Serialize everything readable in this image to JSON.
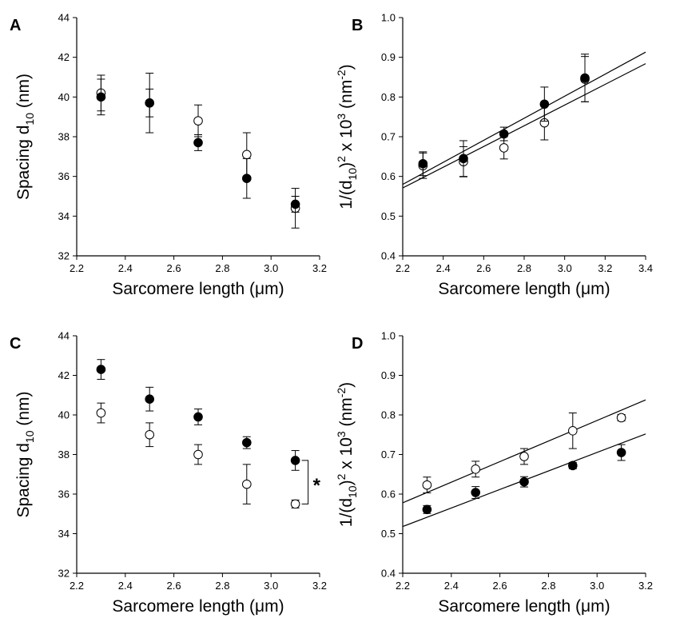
{
  "chart_data": [
    {
      "panel": "A",
      "type": "scatter",
      "xlabel": "Sarcomere length (μm)",
      "ylabel": "Spacing d10 (nm)",
      "xlim": [
        2.2,
        3.2
      ],
      "ylim": [
        32,
        44
      ],
      "xticks": [
        2.2,
        2.4,
        2.6,
        2.8,
        3.0,
        3.2
      ],
      "xtick_labels": [
        "2.2",
        "2.4",
        "2.6",
        "2.8",
        "3.0",
        "3.2"
      ],
      "yticks": [
        32,
        34,
        36,
        38,
        40,
        42,
        44
      ],
      "ytick_labels": [
        "32",
        "34",
        "36",
        "38",
        "40",
        "42",
        "44"
      ],
      "series": [
        {
          "marker": "open",
          "x": [
            2.3,
            2.5,
            2.7,
            2.9,
            3.1
          ],
          "y": [
            40.2,
            39.7,
            38.8,
            37.1,
            34.4
          ],
          "err": [
            0.9,
            1.5,
            0.8,
            1.1,
            1.0
          ]
        },
        {
          "marker": "filled",
          "x": [
            2.3,
            2.5,
            2.7,
            2.9,
            3.1
          ],
          "y": [
            40.0,
            39.7,
            37.7,
            35.9,
            34.6
          ],
          "err": [
            0.9,
            0.7,
            0.4,
            1.0,
            0.4
          ]
        }
      ],
      "fit_lines": []
    },
    {
      "panel": "B",
      "type": "scatter",
      "xlabel": "Sarcomere length (μm)",
      "ylabel": "1/(d10)² x 10³ (nm⁻²)",
      "xlim": [
        2.2,
        3.4
      ],
      "ylim": [
        0.4,
        1.0
      ],
      "xticks": [
        2.2,
        2.4,
        2.6,
        2.8,
        3.0,
        3.2,
        3.4
      ],
      "xtick_labels": [
        "2.2",
        "2.4",
        "2.6",
        "2.8",
        "3.0",
        "3.2",
        "3.4"
      ],
      "yticks": [
        0.4,
        0.5,
        0.6,
        0.7,
        0.8,
        0.9,
        1.0
      ],
      "ytick_labels": [
        "0.4",
        "0.5",
        "0.6",
        "0.7",
        "0.8",
        "0.9",
        "1.0"
      ],
      "series": [
        {
          "marker": "open",
          "x": [
            2.3,
            2.5,
            2.7,
            2.9,
            3.1
          ],
          "y": [
            0.627,
            0.637,
            0.672,
            0.735,
            0.845
          ],
          "err": [
            0.032,
            0.038,
            0.028,
            0.043,
            0.057
          ]
        },
        {
          "marker": "filled",
          "x": [
            2.3,
            2.5,
            2.7,
            2.9,
            3.1
          ],
          "y": [
            0.632,
            0.645,
            0.707,
            0.782,
            0.848
          ],
          "err": [
            0.03,
            0.045,
            0.017,
            0.043,
            0.06
          ]
        }
      ],
      "fit_lines": [
        {
          "x": [
            2.2,
            3.4
          ],
          "y": [
            0.58,
            0.913
          ]
        },
        {
          "x": [
            2.2,
            3.4
          ],
          "y": [
            0.571,
            0.884
          ]
        }
      ]
    },
    {
      "panel": "C",
      "type": "scatter",
      "xlabel": "Sarcomere length (μm)",
      "ylabel": "Spacing d10 (nm)",
      "xlim": [
        2.2,
        3.2
      ],
      "ylim": [
        32,
        44
      ],
      "xticks": [
        2.2,
        2.4,
        2.6,
        2.8,
        3.0,
        3.2
      ],
      "xtick_labels": [
        "2.2",
        "2.4",
        "2.6",
        "2.8",
        "3.0",
        "3.2"
      ],
      "yticks": [
        32,
        34,
        36,
        38,
        40,
        42,
        44
      ],
      "ytick_labels": [
        "32",
        "34",
        "36",
        "38",
        "40",
        "42",
        "44"
      ],
      "series": [
        {
          "marker": "open",
          "x": [
            2.3,
            2.5,
            2.7,
            2.9,
            3.1
          ],
          "y": [
            40.1,
            39.0,
            38.0,
            36.5,
            35.5
          ],
          "err": [
            0.5,
            0.6,
            0.5,
            1.0,
            0.2
          ]
        },
        {
          "marker": "filled",
          "x": [
            2.3,
            2.5,
            2.7,
            2.9,
            3.1
          ],
          "y": [
            42.3,
            40.8,
            39.9,
            38.6,
            37.7
          ],
          "err": [
            0.5,
            0.6,
            0.4,
            0.3,
            0.5
          ]
        }
      ],
      "fit_lines": [],
      "annotations": [
        {
          "text": "*",
          "x": 3.1
        }
      ]
    },
    {
      "panel": "D",
      "type": "scatter",
      "xlabel": "Sarcomere length (μm)",
      "ylabel": "1/(d10)² x 10³ (nm⁻²)",
      "xlim": [
        2.2,
        3.2
      ],
      "ylim": [
        0.4,
        1.0
      ],
      "xticks": [
        2.2,
        2.4,
        2.6,
        2.8,
        3.0,
        3.2
      ],
      "xtick_labels": [
        "2.2",
        "2.4",
        "2.6",
        "2.8",
        "3.0",
        "3.2"
      ],
      "yticks": [
        0.4,
        0.5,
        0.6,
        0.7,
        0.8,
        0.9,
        1.0
      ],
      "ytick_labels": [
        "0.4",
        "0.5",
        "0.6",
        "0.7",
        "0.8",
        "0.9",
        "1.0"
      ],
      "series": [
        {
          "marker": "open",
          "x": [
            2.3,
            2.5,
            2.7,
            2.9,
            3.1
          ],
          "y": [
            0.623,
            0.663,
            0.695,
            0.76,
            0.793
          ],
          "err": [
            0.02,
            0.02,
            0.02,
            0.045,
            0.008
          ]
        },
        {
          "marker": "filled",
          "x": [
            2.3,
            2.5,
            2.7,
            2.9,
            3.1
          ],
          "y": [
            0.561,
            0.604,
            0.631,
            0.672,
            0.705
          ],
          "err": [
            0.01,
            0.015,
            0.013,
            0.008,
            0.02
          ]
        }
      ],
      "fit_lines": [
        {
          "x": [
            2.2,
            3.2
          ],
          "y": [
            0.578,
            0.838
          ]
        },
        {
          "x": [
            2.2,
            3.2
          ],
          "y": [
            0.518,
            0.752
          ]
        }
      ]
    }
  ]
}
